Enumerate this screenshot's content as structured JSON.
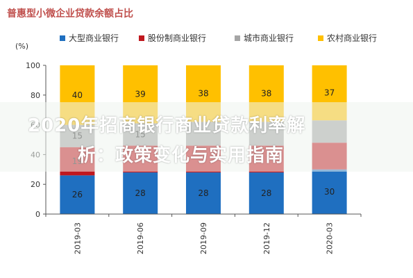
{
  "chart_data": {
    "type": "bar",
    "stacked": true,
    "title": "普惠型小微企业贷款余额占比",
    "ylabel": "(%)",
    "ylim": [
      0,
      100
    ],
    "yticks": [
      0,
      20,
      40,
      60,
      80,
      100
    ],
    "categories": [
      "2019-03",
      "2019-06",
      "2019-09",
      "2019-12",
      "2020-03"
    ],
    "series": [
      {
        "name": "大型商业银行",
        "color": "#1f6fc0",
        "values": [
          26,
          28,
          28,
          28,
          30
        ],
        "labels": [
          "26",
          "28",
          "28",
          "28",
          "30"
        ]
      },
      {
        "name": "股份制商业银行",
        "color": "#c0181e",
        "values": [
          19,
          18,
          18,
          18,
          18
        ],
        "labels": [
          "19",
          "",
          "",
          "",
          ""
        ]
      },
      {
        "name": "城市商业银行",
        "color": "#a5a5a5",
        "values": [
          15,
          15,
          16,
          16,
          15
        ],
        "labels": [
          "15",
          "15",
          "",
          "",
          ""
        ]
      },
      {
        "name": "农村商业银行",
        "color": "#ffc000",
        "values": [
          40,
          39,
          38,
          38,
          37
        ],
        "labels": [
          "40",
          "39",
          "38",
          "38",
          "37"
        ]
      }
    ],
    "grid": false,
    "legend": "top"
  },
  "overlay": {
    "line1": "2020年招商银行商业贷款利率解",
    "line2": "析：政策变化与实用指南"
  }
}
